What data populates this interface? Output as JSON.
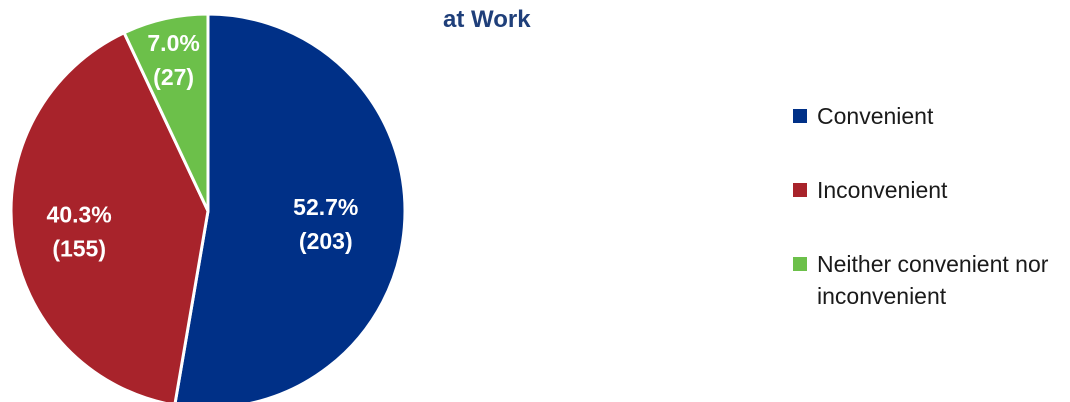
{
  "chart_data": {
    "type": "pie",
    "title": "at Work",
    "slices": [
      {
        "name": "Convenient",
        "percent": 52.7,
        "count": 203,
        "label_pct": "52.7%",
        "label_count": "(203)",
        "color": "#003087"
      },
      {
        "name": "Inconvenient",
        "percent": 40.3,
        "count": 155,
        "label_pct": "40.3%",
        "label_count": "(155)",
        "color": "#a8232b"
      },
      {
        "name": "Neither convenient nor inconvenient",
        "percent": 7.0,
        "count": 27,
        "label_pct": "7.0%",
        "label_count": "(27)",
        "color": "#6cc04a"
      }
    ],
    "legend_position": "right"
  }
}
